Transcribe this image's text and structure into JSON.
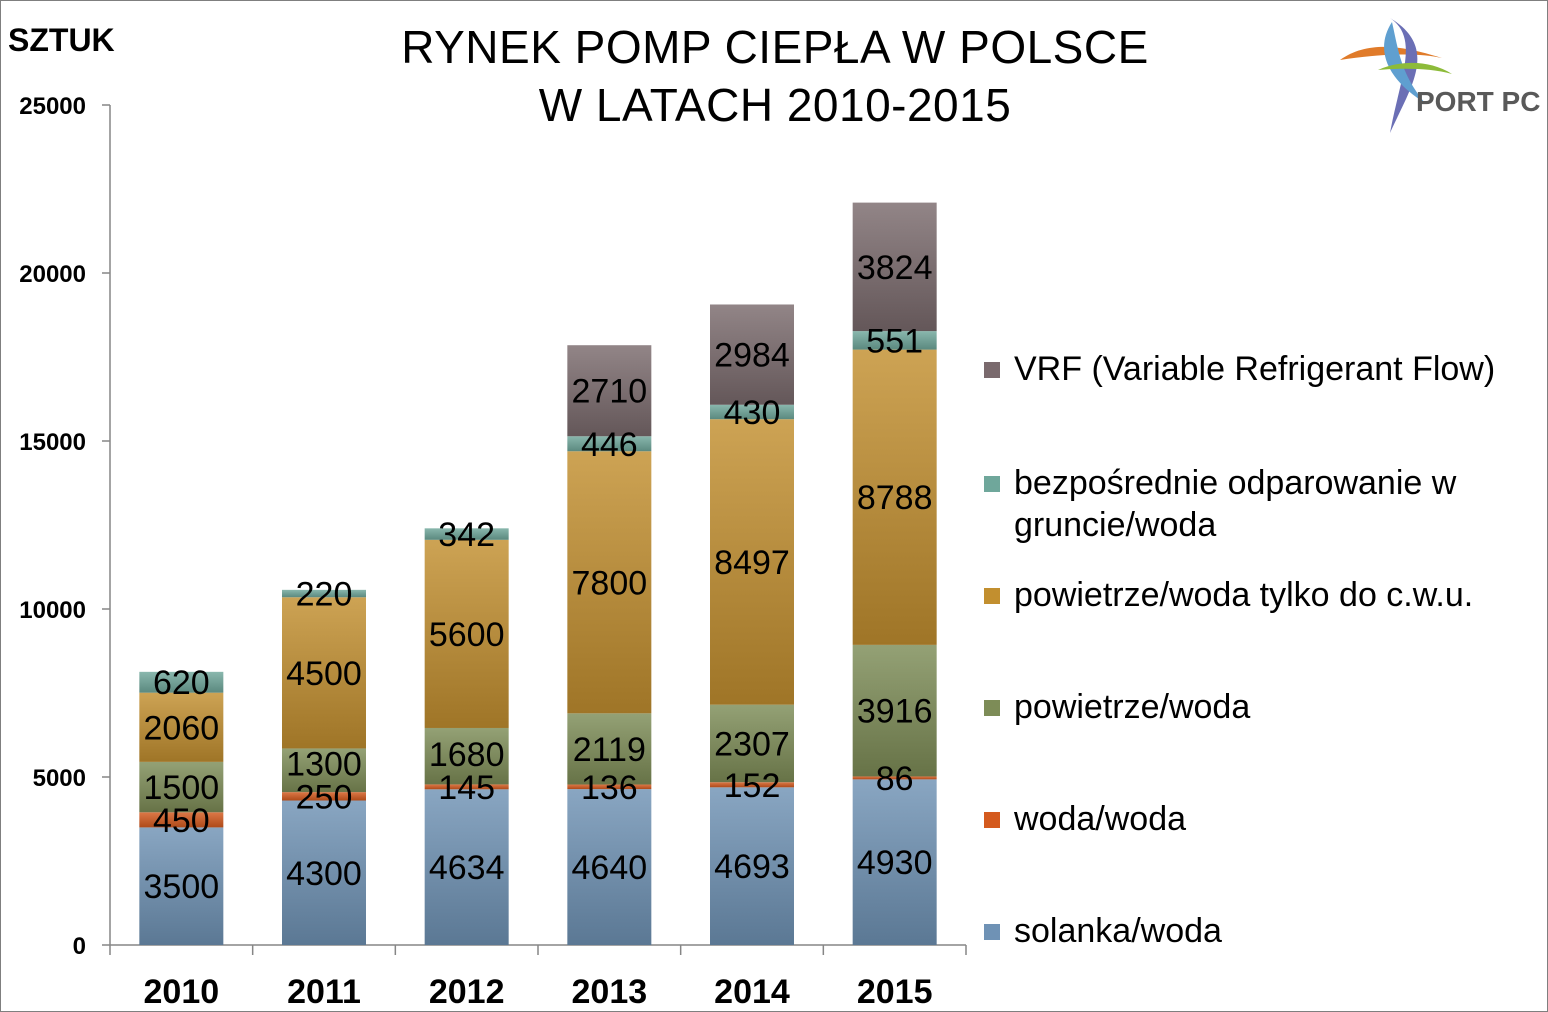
{
  "chart_data": {
    "type": "bar",
    "stacked": true,
    "title": [
      "RYNEK POMP CIEPŁA W POLSCE",
      "W LATACH 2010-2015"
    ],
    "ylabel": "SZTUK",
    "ylim": [
      0,
      25000
    ],
    "yticks": [
      "0",
      "5000",
      "10000",
      "15000",
      "20000",
      "25000"
    ],
    "categories": [
      "2010",
      "2011",
      "2012",
      "2013",
      "2014",
      "2015"
    ],
    "legend_position": "right",
    "series": [
      {
        "name": "solanka/woda",
        "color": "#6f92b5",
        "values": [
          3500,
          4300,
          4634,
          4640,
          4693,
          4930
        ],
        "labels": [
          "3500",
          "4300",
          "4634",
          "4640",
          "4693",
          "4930"
        ]
      },
      {
        "name": "woda/woda",
        "color": "#d45a1e",
        "values": [
          450,
          250,
          145,
          136,
          152,
          86
        ],
        "labels": [
          "450",
          "250",
          "145",
          "136",
          "152",
          "86"
        ]
      },
      {
        "name": "powietrze/woda",
        "color": "#7d8c57",
        "values": [
          1500,
          1300,
          1680,
          2119,
          2307,
          3916
        ],
        "labels": [
          "1500",
          "1300",
          "1680",
          "2119",
          "2307",
          "3916"
        ]
      },
      {
        "name": "powietrze/woda tylko do c.w.u.",
        "color": "#c28f2f",
        "values": [
          2060,
          4500,
          5600,
          7800,
          8497,
          8788
        ],
        "labels": [
          "2060",
          "4500",
          "5600",
          "7800",
          "8497",
          "8788"
        ]
      },
      {
        "name": "bezpośrednie odparowanie w gruncie/woda",
        "color": "#6fa79b",
        "values": [
          620,
          220,
          342,
          446,
          430,
          551
        ],
        "labels": [
          "620",
          "220",
          "342",
          "446",
          "430",
          "551"
        ]
      },
      {
        "name": "VRF (Variable Refrigerant Flow)",
        "color": "#7a6a6d",
        "values": [
          0,
          0,
          0,
          2710,
          2984,
          3824
        ],
        "labels": [
          "",
          "",
          "",
          "2710",
          "2984",
          "3824"
        ]
      }
    ]
  },
  "logo": {
    "text": "PORT PC"
  }
}
